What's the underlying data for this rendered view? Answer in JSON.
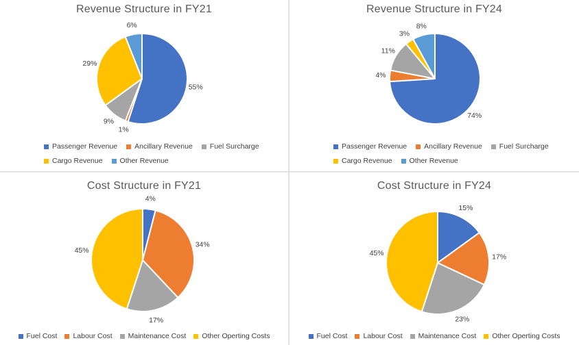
{
  "page": {
    "background": "#FFFFFF",
    "divider_color": "#E2E2E2",
    "title_color": "#595959",
    "label_color": "#404040"
  },
  "chart_data": [
    {
      "type": "pie",
      "title": "Revenue Structure in FY21",
      "categories": [
        "Passenger Revenue",
        "Ancillary Revenue",
        "Fuel Surcharge",
        "Cargo Revenue",
        "Other Revenue"
      ],
      "values": [
        55,
        1,
        9,
        29,
        6
      ],
      "data_labels": [
        "55%",
        "1%",
        "9%",
        "29%",
        "6%"
      ],
      "slice_colors": [
        "#4472C4",
        "#ED7D31",
        "#A5A5A5",
        "#FFC000",
        "#5B9BD5"
      ],
      "start_angle_deg": 0,
      "direction": "clockwise",
      "legend_position": "bottom",
      "legend_rows": [
        [
          0,
          1,
          2
        ],
        [
          3,
          4
        ]
      ]
    },
    {
      "type": "pie",
      "title": "Revenue Structure in FY24",
      "categories": [
        "Passenger Revenue",
        "Ancillary Revenue",
        "Fuel Surcharge",
        "Cargo Revenue",
        "Other Revenue"
      ],
      "values": [
        74,
        4,
        11,
        3,
        8
      ],
      "data_labels": [
        "74%",
        "4%",
        "11%",
        "3%",
        "8%"
      ],
      "slice_colors": [
        "#4472C4",
        "#ED7D31",
        "#A5A5A5",
        "#FFC000",
        "#5B9BD5"
      ],
      "start_angle_deg": 0,
      "direction": "clockwise",
      "legend_position": "bottom",
      "legend_rows": [
        [
          0,
          1,
          2
        ],
        [
          3,
          4
        ]
      ]
    },
    {
      "type": "pie",
      "title": "Cost Structure in FY21",
      "categories": [
        "Fuel Cost",
        "Labour Cost",
        "Maintenance Cost",
        "Other Operting Costs"
      ],
      "values": [
        4,
        34,
        17,
        45
      ],
      "data_labels": [
        "4%",
        "34%",
        "17%",
        "45%"
      ],
      "slice_colors": [
        "#4472C4",
        "#ED7D31",
        "#A5A5A5",
        "#FFC000"
      ],
      "start_angle_deg": 0,
      "direction": "clockwise",
      "legend_position": "bottom",
      "legend_rows": [
        [
          0,
          1,
          2,
          3
        ]
      ]
    },
    {
      "type": "pie",
      "title": "Cost Structure in FY24",
      "categories": [
        "Fuel Cost",
        "Labour Cost",
        "Maintenance Cost",
        "Other Operting Costs"
      ],
      "values": [
        15,
        17,
        23,
        45
      ],
      "data_labels": [
        "15%",
        "17%",
        "23%",
        "45%"
      ],
      "slice_colors": [
        "#4472C4",
        "#ED7D31",
        "#A5A5A5",
        "#FFC000"
      ],
      "start_angle_deg": 0,
      "direction": "clockwise",
      "legend_position": "bottom",
      "legend_rows": [
        [
          0,
          1,
          2,
          3
        ]
      ]
    }
  ]
}
